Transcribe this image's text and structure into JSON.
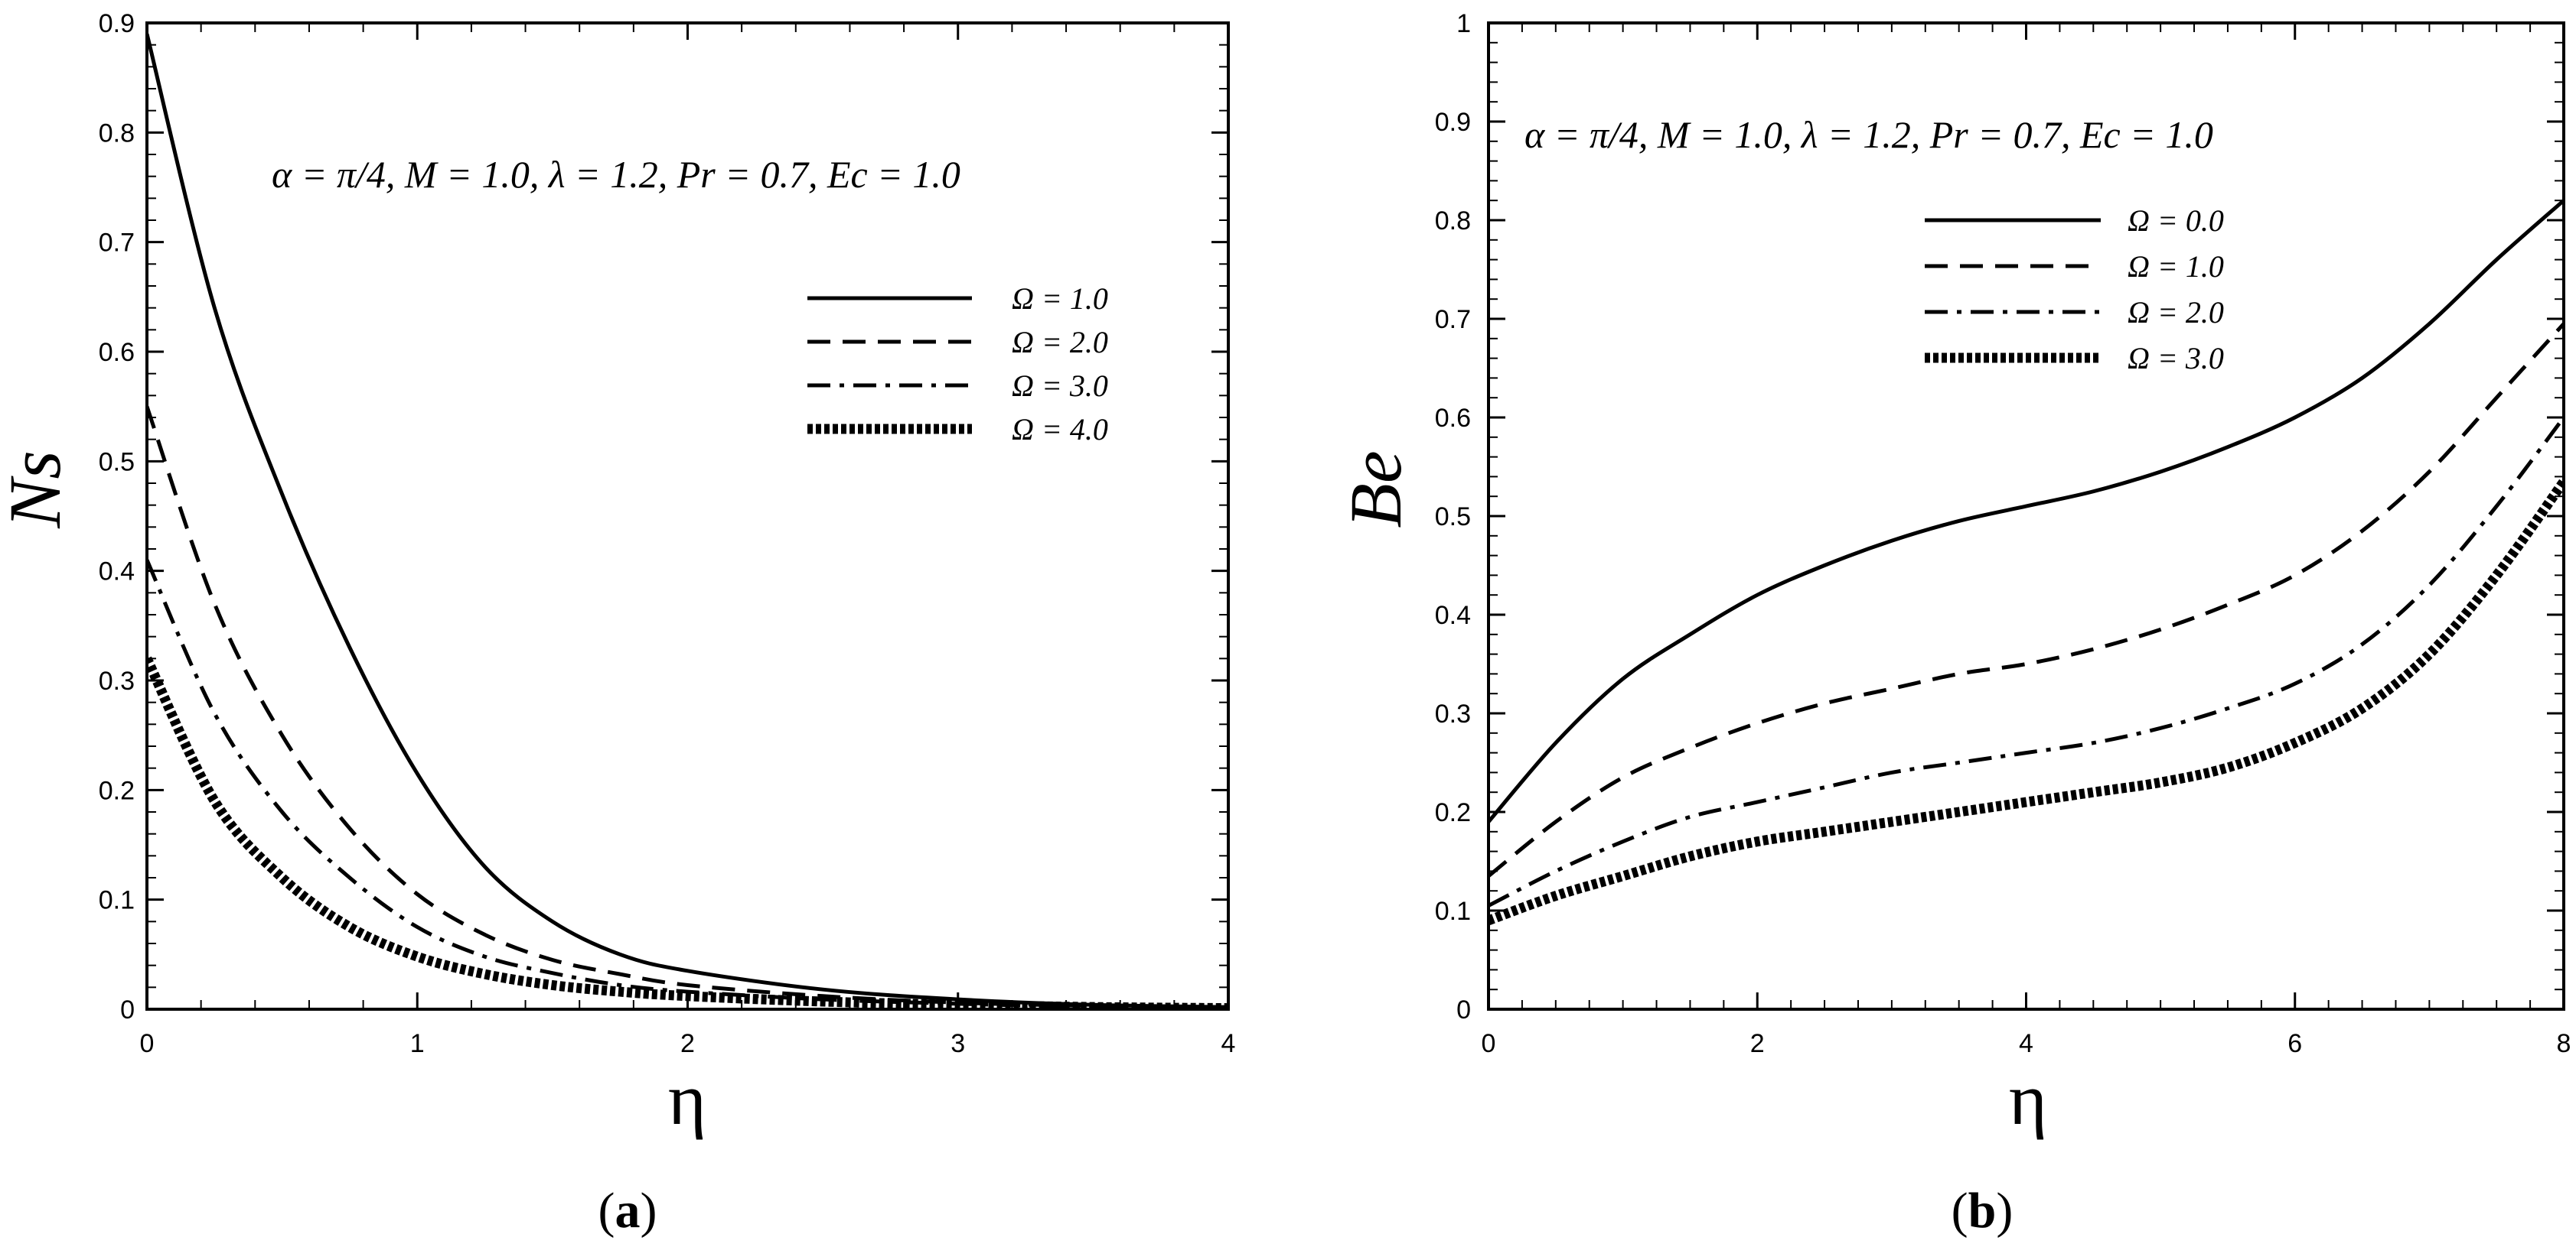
{
  "chart_data": [
    {
      "type": "line",
      "panel_label": "(a)",
      "xlabel": "η",
      "ylabel": "Ns",
      "xlim": [
        0,
        4
      ],
      "ylim": [
        0,
        0.9
      ],
      "xticks": [
        "0",
        "1",
        "2",
        "3",
        "4"
      ],
      "yticks": [
        "0",
        "0.1",
        "0.2",
        "0.3",
        "0.4",
        "0.5",
        "0.6",
        "0.7",
        "0.8",
        "0.9"
      ],
      "annotation": "α = π/4, M = 1.0, λ = 1.2, Pr = 0.7, Ec = 1.0",
      "legend_position": "top-right",
      "grid": false,
      "x": [
        0,
        0.25,
        0.5,
        0.75,
        1.0,
        1.25,
        1.5,
        1.75,
        2.0,
        2.5,
        3.0,
        3.5,
        4.0
      ],
      "series": [
        {
          "name": "Ω = 1.0",
          "style": "solid",
          "values": [
            0.89,
            0.64,
            0.47,
            0.33,
            0.215,
            0.13,
            0.08,
            0.05,
            0.035,
            0.018,
            0.009,
            0.004,
            0.002
          ]
        },
        {
          "name": "Ω = 2.0",
          "style": "dashed",
          "values": [
            0.55,
            0.37,
            0.25,
            0.165,
            0.105,
            0.068,
            0.045,
            0.032,
            0.022,
            0.012,
            0.006,
            0.003,
            0.001
          ]
        },
        {
          "name": "Ω = 3.0",
          "style": "dashdot",
          "values": [
            0.41,
            0.27,
            0.18,
            0.12,
            0.075,
            0.048,
            0.033,
            0.022,
            0.016,
            0.009,
            0.005,
            0.002,
            0.001
          ]
        },
        {
          "name": "Ω = 4.0",
          "style": "dotted",
          "values": [
            0.32,
            0.19,
            0.12,
            0.075,
            0.048,
            0.032,
            0.022,
            0.016,
            0.012,
            0.007,
            0.004,
            0.002,
            0.001
          ]
        }
      ]
    },
    {
      "type": "line",
      "panel_label": "(b)",
      "xlabel": "η",
      "ylabel": "Be",
      "xlim": [
        0,
        8
      ],
      "ylim": [
        0,
        1
      ],
      "xticks": [
        "0",
        "2",
        "4",
        "6",
        "8"
      ],
      "yticks": [
        "0",
        "0.1",
        "0.2",
        "0.3",
        "0.4",
        "0.5",
        "0.6",
        "0.7",
        "0.8",
        "0.9",
        "1"
      ],
      "annotation": "α = π/4, M = 1.0, λ = 1.2, Pr = 0.7, Ec = 1.0",
      "legend_position": "top-center",
      "grid": false,
      "x": [
        0,
        0.5,
        1,
        1.5,
        2,
        2.5,
        3,
        3.5,
        4,
        4.5,
        5,
        5.5,
        6,
        6.5,
        7,
        7.5,
        8
      ],
      "series": [
        {
          "name": "Ω = 0.0",
          "style": "solid",
          "values": [
            0.19,
            0.27,
            0.335,
            0.38,
            0.42,
            0.45,
            0.475,
            0.495,
            0.51,
            0.525,
            0.545,
            0.57,
            0.6,
            0.64,
            0.695,
            0.76,
            0.82
          ]
        },
        {
          "name": "Ω = 1.0",
          "style": "dashed",
          "values": [
            0.135,
            0.19,
            0.235,
            0.265,
            0.29,
            0.31,
            0.325,
            0.34,
            0.35,
            0.365,
            0.385,
            0.41,
            0.44,
            0.485,
            0.545,
            0.62,
            0.695
          ]
        },
        {
          "name": "Ω = 2.0",
          "style": "dashdot",
          "values": [
            0.105,
            0.14,
            0.17,
            0.195,
            0.21,
            0.225,
            0.24,
            0.25,
            0.26,
            0.27,
            0.285,
            0.305,
            0.33,
            0.37,
            0.43,
            0.51,
            0.6
          ]
        },
        {
          "name": "Ω = 3.0",
          "style": "dotted",
          "values": [
            0.09,
            0.115,
            0.135,
            0.155,
            0.17,
            0.18,
            0.19,
            0.2,
            0.21,
            0.22,
            0.23,
            0.245,
            0.27,
            0.305,
            0.36,
            0.44,
            0.535
          ]
        }
      ]
    }
  ]
}
